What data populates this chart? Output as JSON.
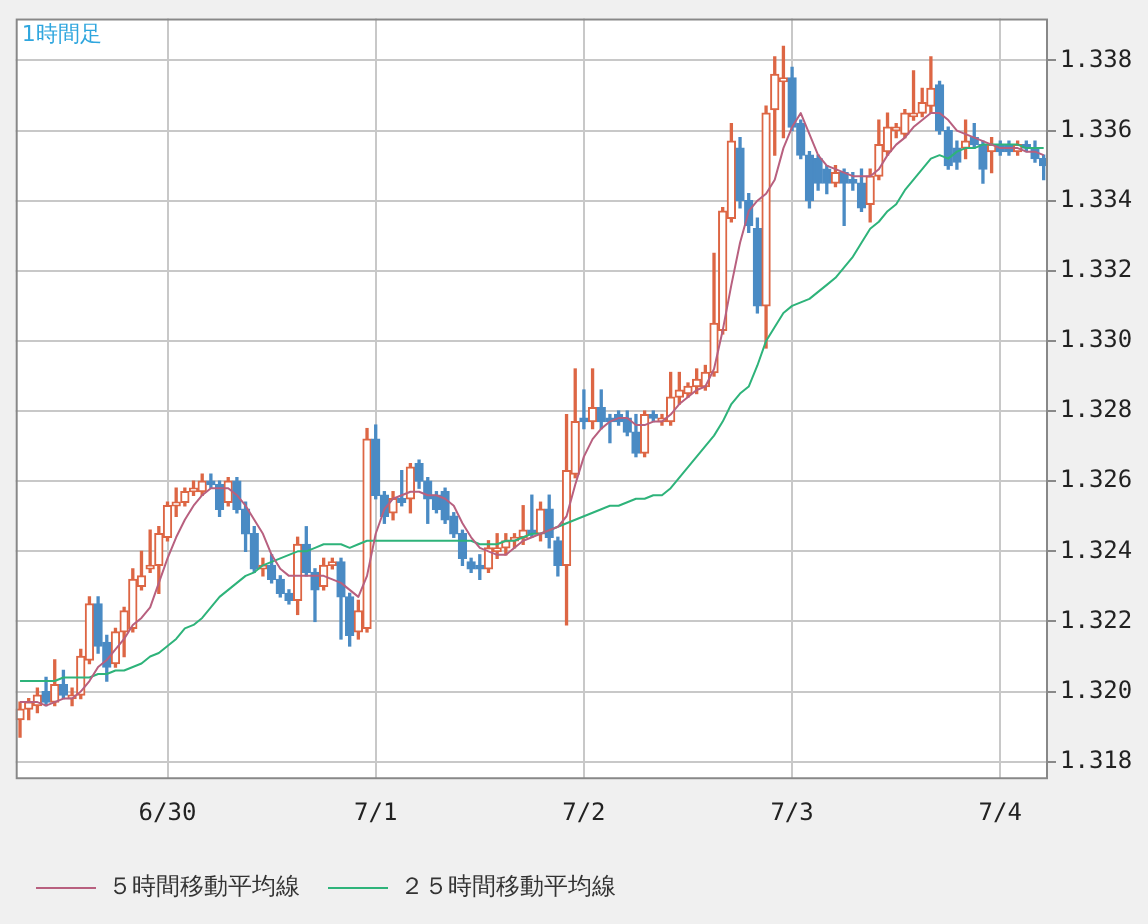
{
  "chart_data": {
    "type": "candlestick",
    "title": "1時間足",
    "categories": [
      null,
      null,
      null,
      null,
      null,
      null,
      null,
      null,
      null,
      null,
      null,
      null,
      null,
      null,
      null,
      null,
      null,
      "6/30",
      null,
      null,
      null,
      null,
      null,
      null,
      null,
      null,
      null,
      null,
      null,
      null,
      null,
      null,
      null,
      null,
      null,
      null,
      null,
      null,
      null,
      null,
      null,
      "7/1",
      null,
      null,
      null,
      null,
      null,
      null,
      null,
      null,
      null,
      null,
      null,
      null,
      null,
      null,
      null,
      null,
      null,
      null,
      null,
      null,
      null,
      null,
      null,
      "7/2",
      null,
      null,
      null,
      null,
      null,
      null,
      null,
      null,
      null,
      null,
      null,
      null,
      null,
      null,
      null,
      null,
      null,
      null,
      null,
      null,
      null,
      null,
      null,
      "7/3",
      null,
      null,
      null,
      null,
      null,
      null,
      null,
      null,
      null,
      null,
      null,
      null,
      null,
      null,
      null,
      null,
      null,
      null,
      null,
      null,
      null,
      null,
      null,
      "7/4",
      null,
      null,
      null,
      null,
      null
    ],
    "ohlc": [
      [
        1.3192,
        1.3197,
        1.3187,
        1.3195
      ],
      [
        1.3195,
        1.3198,
        1.3192,
        1.3197
      ],
      [
        1.3196,
        1.3201,
        1.3194,
        1.3199
      ],
      [
        1.32,
        1.3204,
        1.3196,
        1.3197
      ],
      [
        1.3197,
        1.3209,
        1.3196,
        1.3202
      ],
      [
        1.3202,
        1.3206,
        1.3198,
        1.3199
      ],
      [
        1.3198,
        1.3201,
        1.3196,
        1.3199
      ],
      [
        1.3199,
        1.3212,
        1.3198,
        1.321
      ],
      [
        1.3209,
        1.3227,
        1.3208,
        1.3225
      ],
      [
        1.3225,
        1.3227,
        1.3211,
        1.3213
      ],
      [
        1.3214,
        1.3216,
        1.3203,
        1.3207
      ],
      [
        1.3208,
        1.3218,
        1.3207,
        1.3217
      ],
      [
        1.3217,
        1.3224,
        1.321,
        1.3223
      ],
      [
        1.3218,
        1.3235,
        1.3217,
        1.3232
      ],
      [
        1.323,
        1.324,
        1.3229,
        1.3233
      ],
      [
        1.3235,
        1.3246,
        1.3234,
        1.3236
      ],
      [
        1.3236,
        1.3247,
        1.3228,
        1.3245
      ],
      [
        1.3244,
        1.3254,
        1.3243,
        1.3253
      ],
      [
        1.3253,
        1.3258,
        1.325,
        1.3254
      ],
      [
        1.3254,
        1.3258,
        1.3253,
        1.3257
      ],
      [
        1.3257,
        1.326,
        1.3256,
        1.3258
      ],
      [
        1.3257,
        1.3262,
        1.3256,
        1.326
      ],
      [
        1.326,
        1.3262,
        1.3258,
        1.3259
      ],
      [
        1.3259,
        1.326,
        1.325,
        1.3252
      ],
      [
        1.3254,
        1.3261,
        1.3253,
        1.326
      ],
      [
        1.326,
        1.3261,
        1.3251,
        1.3252
      ],
      [
        1.3252,
        1.3254,
        1.324,
        1.3245
      ],
      [
        1.3245,
        1.3247,
        1.3234,
        1.3235
      ],
      [
        1.3235,
        1.3238,
        1.3233,
        1.3236
      ],
      [
        1.3236,
        1.3239,
        1.3231,
        1.3232
      ],
      [
        1.3232,
        1.3233,
        1.3227,
        1.3228
      ],
      [
        1.3228,
        1.3229,
        1.3225,
        1.3226
      ],
      [
        1.3226,
        1.3244,
        1.3222,
        1.3242
      ],
      [
        1.3242,
        1.3247,
        1.3233,
        1.3234
      ],
      [
        1.3234,
        1.3235,
        1.322,
        1.3229
      ],
      [
        1.323,
        1.3238,
        1.3229,
        1.3236
      ],
      [
        1.3236,
        1.3238,
        1.3235,
        1.3237
      ],
      [
        1.3237,
        1.3238,
        1.3215,
        1.3227
      ],
      [
        1.3227,
        1.3228,
        1.3213,
        1.3216
      ],
      [
        1.3217,
        1.3226,
        1.3215,
        1.3223
      ],
      [
        1.3218,
        1.3275,
        1.3217,
        1.3272
      ],
      [
        1.3272,
        1.3276,
        1.3255,
        1.3256
      ],
      [
        1.3256,
        1.3257,
        1.3248,
        1.325
      ],
      [
        1.3251,
        1.3257,
        1.3249,
        1.3255
      ],
      [
        1.3255,
        1.3263,
        1.3253,
        1.3254
      ],
      [
        1.3255,
        1.3265,
        1.3251,
        1.3264
      ],
      [
        1.3265,
        1.3266,
        1.3258,
        1.326
      ],
      [
        1.326,
        1.3261,
        1.3248,
        1.3255
      ],
      [
        1.3256,
        1.3257,
        1.3251,
        1.3252
      ],
      [
        1.3257,
        1.3258,
        1.3248,
        1.3249
      ],
      [
        1.325,
        1.3251,
        1.3244,
        1.3245
      ],
      [
        1.3245,
        1.3246,
        1.3236,
        1.3238
      ],
      [
        1.3237,
        1.3238,
        1.3234,
        1.3235
      ],
      [
        1.3236,
        1.3239,
        1.3232,
        1.3235
      ],
      [
        1.3235,
        1.3243,
        1.3234,
        1.3241
      ],
      [
        1.324,
        1.3245,
        1.3238,
        1.3241
      ],
      [
        1.3241,
        1.3245,
        1.3239,
        1.3243
      ],
      [
        1.3243,
        1.3245,
        1.3241,
        1.3244
      ],
      [
        1.3244,
        1.3253,
        1.3242,
        1.3246
      ],
      [
        1.3246,
        1.3256,
        1.3244,
        1.3245
      ],
      [
        1.3245,
        1.3254,
        1.3243,
        1.3252
      ],
      [
        1.3252,
        1.3256,
        1.3241,
        1.3244
      ],
      [
        1.3243,
        1.3244,
        1.3233,
        1.3236
      ],
      [
        1.3236,
        1.3279,
        1.3219,
        1.3263
      ],
      [
        1.3262,
        1.3292,
        1.3261,
        1.3277
      ],
      [
        1.3278,
        1.3286,
        1.3275,
        1.3277
      ],
      [
        1.3277,
        1.3292,
        1.3275,
        1.3281
      ],
      [
        1.3281,
        1.3286,
        1.3275,
        1.3277
      ],
      [
        1.3278,
        1.3279,
        1.3271,
        1.3277
      ],
      [
        1.3279,
        1.328,
        1.3276,
        1.3277
      ],
      [
        1.3278,
        1.328,
        1.3273,
        1.3274
      ],
      [
        1.3274,
        1.3279,
        1.3267,
        1.3268
      ],
      [
        1.3268,
        1.328,
        1.3267,
        1.3279
      ],
      [
        1.3279,
        1.328,
        1.3277,
        1.3278
      ],
      [
        1.3277,
        1.3279,
        1.3276,
        1.3278
      ],
      [
        1.3277,
        1.3291,
        1.3276,
        1.3284
      ],
      [
        1.3284,
        1.3291,
        1.3282,
        1.3286
      ],
      [
        1.3285,
        1.3288,
        1.3284,
        1.3287
      ],
      [
        1.3287,
        1.3292,
        1.3285,
        1.3289
      ],
      [
        1.3287,
        1.3293,
        1.3286,
        1.3291
      ],
      [
        1.3291,
        1.3325,
        1.329,
        1.3305
      ],
      [
        1.3303,
        1.3338,
        1.3302,
        1.3337
      ],
      [
        1.3335,
        1.3362,
        1.3334,
        1.3357
      ],
      [
        1.3355,
        1.3358,
        1.3338,
        1.334
      ],
      [
        1.334,
        1.3342,
        1.3331,
        1.3333
      ],
      [
        1.3332,
        1.3335,
        1.3308,
        1.331
      ],
      [
        1.331,
        1.3367,
        1.3298,
        1.3365
      ],
      [
        1.3366,
        1.3381,
        1.3353,
        1.3376
      ],
      [
        1.3374,
        1.3384,
        1.3358,
        1.3375
      ],
      [
        1.3375,
        1.3378,
        1.336,
        1.3361
      ],
      [
        1.3362,
        1.3363,
        1.3352,
        1.3353
      ],
      [
        1.3353,
        1.3354,
        1.3338,
        1.334
      ],
      [
        1.3352,
        1.3353,
        1.3343,
        1.3345
      ],
      [
        1.3349,
        1.335,
        1.3342,
        1.3345
      ],
      [
        1.3345,
        1.335,
        1.3344,
        1.3348
      ],
      [
        1.3348,
        1.3349,
        1.3333,
        1.3345
      ],
      [
        1.3346,
        1.3348,
        1.3343,
        1.3345
      ],
      [
        1.3345,
        1.3349,
        1.3337,
        1.3338
      ],
      [
        1.3339,
        1.3349,
        1.3334,
        1.3347
      ],
      [
        1.3347,
        1.3363,
        1.3346,
        1.3356
      ],
      [
        1.3354,
        1.3365,
        1.3353,
        1.3361
      ],
      [
        1.336,
        1.3362,
        1.3358,
        1.3361
      ],
      [
        1.3359,
        1.3366,
        1.3358,
        1.3365
      ],
      [
        1.3364,
        1.3377,
        1.3363,
        1.3365
      ],
      [
        1.3365,
        1.3372,
        1.3364,
        1.3368
      ],
      [
        1.3367,
        1.3381,
        1.3365,
        1.3372
      ],
      [
        1.3373,
        1.3374,
        1.3359,
        1.336
      ],
      [
        1.336,
        1.3361,
        1.3349,
        1.335
      ],
      [
        1.3355,
        1.3357,
        1.3349,
        1.3351
      ],
      [
        1.3355,
        1.3363,
        1.3352,
        1.3357
      ],
      [
        1.3358,
        1.3362,
        1.3355,
        1.3356
      ],
      [
        1.3356,
        1.3357,
        1.3345,
        1.3349
      ],
      [
        1.3354,
        1.3358,
        1.3348,
        1.3356
      ],
      [
        1.3356,
        1.3357,
        1.3353,
        1.3354
      ],
      [
        1.3356,
        1.3357,
        1.3353,
        1.3354
      ],
      [
        1.3354,
        1.3357,
        1.3353,
        1.3356
      ],
      [
        1.3356,
        1.3357,
        1.3354,
        1.3355
      ],
      [
        1.3355,
        1.3357,
        1.3351,
        1.3352
      ],
      [
        1.3352,
        1.3353,
        1.3346,
        1.335
      ]
    ],
    "colors": [
      "#dd6644",
      "#dd6644",
      "#dd6644",
      "#4a8bc4",
      "#dd6644",
      "#4a8bc4",
      "#dd6644",
      "#dd6644",
      "#dd6644",
      "#4a8bc4",
      "#4a8bc4",
      "#dd6644",
      "#dd6644",
      "#dd6644",
      "#dd6644",
      "#dd6644",
      "#dd6644",
      "#dd6644",
      "#dd6644",
      "#dd6644",
      "#dd6644",
      "#dd6644",
      "#4a8bc4",
      "#4a8bc4",
      "#dd6644",
      "#4a8bc4",
      "#4a8bc4",
      "#4a8bc4",
      "#dd6644",
      "#4a8bc4",
      "#4a8bc4",
      "#4a8bc4",
      "#dd6644",
      "#4a8bc4",
      "#4a8bc4",
      "#dd6644",
      "#dd6644",
      "#4a8bc4",
      "#4a8bc4",
      "#dd6644",
      "#dd6644",
      "#4a8bc4",
      "#4a8bc4",
      "#dd6644",
      "#4a8bc4",
      "#dd6644",
      "#4a8bc4",
      "#4a8bc4",
      "#4a8bc4",
      "#4a8bc4",
      "#4a8bc4",
      "#4a8bc4",
      "#4a8bc4",
      "#4a8bc4",
      "#dd6644",
      "#dd6644",
      "#dd6644",
      "#dd6644",
      "#dd6644",
      "#4a8bc4",
      "#dd6644",
      "#4a8bc4",
      "#4a8bc4",
      "#dd6644",
      "#dd6644",
      "#4a8bc4",
      "#dd6644",
      "#4a8bc4",
      "#4a8bc4",
      "#4a8bc4",
      "#4a8bc4",
      "#4a8bc4",
      "#dd6644",
      "#4a8bc4",
      "#dd6644",
      "#dd6644",
      "#dd6644",
      "#dd6644",
      "#dd6644",
      "#dd6644",
      "#dd6644",
      "#dd6644",
      "#dd6644",
      "#4a8bc4",
      "#4a8bc4",
      "#4a8bc4",
      "#dd6644",
      "#dd6644",
      "#dd6644",
      "#4a8bc4",
      "#4a8bc4",
      "#4a8bc4",
      "#4a8bc4",
      "#4a8bc4",
      "#dd6644",
      "#4a8bc4",
      "#4a8bc4",
      "#4a8bc4",
      "#dd6644",
      "#dd6644",
      "#dd6644",
      "#dd6644",
      "#dd6644",
      "#dd6644",
      "#dd6644",
      "#dd6644",
      "#4a8bc4",
      "#4a8bc4",
      "#4a8bc4",
      "#dd6644",
      "#4a8bc4",
      "#4a8bc4",
      "#dd6644",
      "#4a8bc4",
      "#4a8bc4",
      "#dd6644",
      "#4a8bc4",
      "#4a8bc4",
      "#4a8bc4"
    ],
    "series": [
      {
        "type": "line",
        "name": "５時間移動平均線",
        "color": "#b8607f",
        "values": [
          1.3197,
          1.3197,
          1.3197,
          1.3196,
          1.3197,
          1.3198,
          1.3198,
          1.32,
          1.3203,
          1.3207,
          1.3209,
          1.3212,
          1.3215,
          1.3219,
          1.3221,
          1.3224,
          1.3231,
          1.3238,
          1.3244,
          1.3249,
          1.3253,
          1.3256,
          1.3258,
          1.3258,
          1.3258,
          1.3256,
          1.3253,
          1.3249,
          1.3245,
          1.3239,
          1.3235,
          1.3233,
          1.3233,
          1.3233,
          1.3233,
          1.3233,
          1.3232,
          1.3231,
          1.3229,
          1.3227,
          1.3233,
          1.3245,
          1.3252,
          1.3255,
          1.3256,
          1.3257,
          1.3257,
          1.3256,
          1.3256,
          1.3255,
          1.3253,
          1.3248,
          1.3244,
          1.3241,
          1.324,
          1.3239,
          1.3239,
          1.3241,
          1.3243,
          1.3244,
          1.3245,
          1.3246,
          1.3247,
          1.325,
          1.3259,
          1.3267,
          1.3272,
          1.3275,
          1.3277,
          1.3278,
          1.3278,
          1.3276,
          1.3276,
          1.3277,
          1.3277,
          1.3279,
          1.3282,
          1.3284,
          1.3286,
          1.3287,
          1.3292,
          1.3303,
          1.3316,
          1.3328,
          1.3337,
          1.334,
          1.3342,
          1.3346,
          1.3355,
          1.3361,
          1.3365,
          1.3359,
          1.3353,
          1.335,
          1.3349,
          1.3348,
          1.3347,
          1.3347,
          1.3347,
          1.3349,
          1.3353,
          1.3356,
          1.3358,
          1.3361,
          1.3363,
          1.3365,
          1.3365,
          1.3363,
          1.336,
          1.3359,
          1.3358,
          1.3357,
          1.3356,
          1.3355,
          1.3355,
          1.3355,
          1.3354,
          1.3354,
          1.3353
        ]
      },
      {
        "type": "line",
        "name": "２５時間移動平均線",
        "color": "#2eb37a",
        "values": [
          1.3203,
          1.3203,
          1.3203,
          1.3203,
          1.3203,
          1.3204,
          1.3204,
          1.3204,
          1.3204,
          1.3205,
          1.3205,
          1.3206,
          1.3206,
          1.3207,
          1.3208,
          1.321,
          1.3211,
          1.3213,
          1.3215,
          1.3218,
          1.3219,
          1.3221,
          1.3224,
          1.3227,
          1.3229,
          1.3231,
          1.3233,
          1.3234,
          1.3236,
          1.3237,
          1.3238,
          1.3239,
          1.324,
          1.324,
          1.3241,
          1.3242,
          1.3242,
          1.3242,
          1.3241,
          1.3242,
          1.3243,
          1.3243,
          1.3243,
          1.3243,
          1.3243,
          1.3243,
          1.3243,
          1.3243,
          1.3243,
          1.3243,
          1.3243,
          1.3243,
          1.3243,
          1.3242,
          1.3242,
          1.3242,
          1.3243,
          1.3243,
          1.3244,
          1.3245,
          1.3245,
          1.3246,
          1.3247,
          1.3248,
          1.3249,
          1.325,
          1.3251,
          1.3252,
          1.3253,
          1.3253,
          1.3254,
          1.3255,
          1.3255,
          1.3256,
          1.3256,
          1.3258,
          1.3261,
          1.3264,
          1.3267,
          1.327,
          1.3273,
          1.3277,
          1.3282,
          1.3285,
          1.3287,
          1.3293,
          1.33,
          1.3304,
          1.3308,
          1.331,
          1.3311,
          1.3312,
          1.3314,
          1.3316,
          1.3318,
          1.3321,
          1.3324,
          1.3328,
          1.3332,
          1.3334,
          1.3337,
          1.3339,
          1.3343,
          1.3346,
          1.3349,
          1.3352,
          1.3353,
          1.3352,
          1.3354,
          1.3355,
          1.3355,
          1.3356,
          1.3356,
          1.3356,
          1.3356,
          1.3356,
          1.3355,
          1.3355,
          1.3355
        ]
      }
    ],
    "ylim": [
      1.3175,
      1.3392
    ],
    "yticks": [
      1.318,
      {
        "value": 1.32,
        "label": "1.320"
      },
      1.322,
      1.324,
      1.326,
      1.328,
      {
        "value": 1.33,
        "label": "1.330"
      },
      1.332,
      1.334,
      1.336,
      1.338
    ],
    "grid": true,
    "legend": "bottom"
  }
}
